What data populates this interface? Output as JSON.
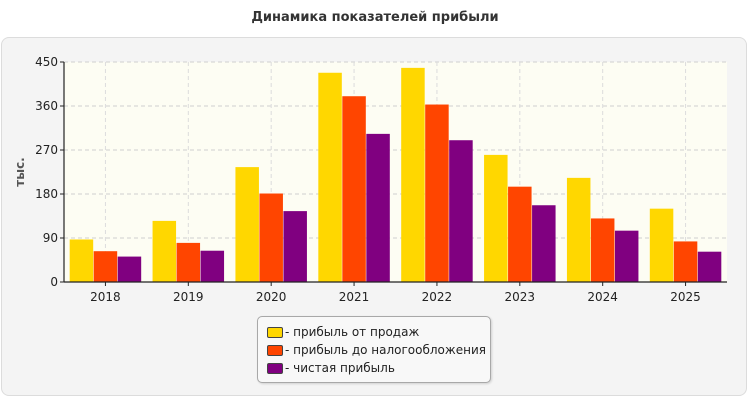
{
  "chart_data": {
    "type": "bar",
    "title": "Динамика показателей прибыли",
    "xlabel": "",
    "ylabel": "тыс.",
    "ylim": [
      0,
      450
    ],
    "yticks": [
      0,
      90,
      180,
      270,
      360,
      450
    ],
    "grid": true,
    "legend_position": "bottom-center",
    "categories": [
      "2018",
      "2019",
      "2020",
      "2021",
      "2022",
      "2023",
      "2024",
      "2025"
    ],
    "series": [
      {
        "name": "- прибыль от продаж",
        "color": "#FFD700",
        "values": [
          87,
          125,
          235,
          428,
          438,
          260,
          213,
          150
        ]
      },
      {
        "name": "- прибыль до налогообложения",
        "color": "#FF4500",
        "values": [
          63,
          80,
          181,
          380,
          363,
          195,
          130,
          83
        ]
      },
      {
        "name": "- чистая прибыль",
        "color": "#800080",
        "values": [
          52,
          64,
          145,
          303,
          290,
          157,
          105,
          62
        ]
      }
    ]
  }
}
